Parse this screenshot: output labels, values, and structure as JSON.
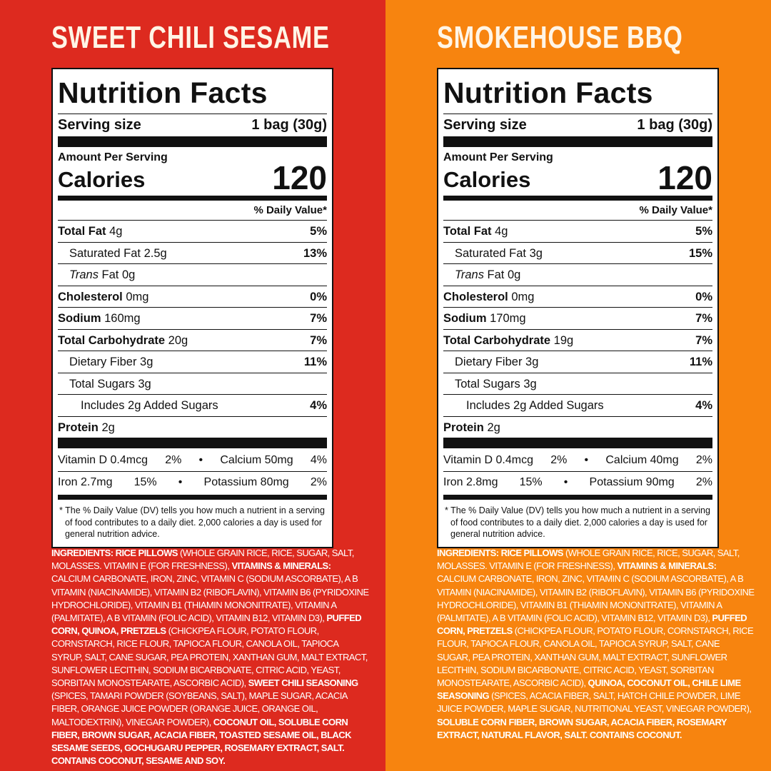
{
  "panels": [
    {
      "title": "SWEET CHILI SESAME",
      "heading": "Nutrition Facts",
      "serving_label": "Serving size",
      "serving_value": "1 bag (30g)",
      "amount_label": "Amount Per Serving",
      "calories_label": "Calories",
      "calories": 120,
      "dv_header": "% Daily Value*",
      "nutrients": [
        {
          "name": "Total Fat",
          "amount": "4g",
          "dv": "5%",
          "bold": true,
          "indent": 0
        },
        {
          "name": "Saturated Fat",
          "amount": "2.5g",
          "dv": "13%",
          "bold": false,
          "indent": 1
        },
        {
          "name_italic": "Trans",
          "name": "Fat",
          "amount": "0g",
          "bold": false,
          "indent": 1
        },
        {
          "name": "Cholesterol",
          "amount": "0mg",
          "dv": "0%",
          "bold": true,
          "indent": 0
        },
        {
          "name": "Sodium",
          "amount": "160mg",
          "dv": "7%",
          "bold": true,
          "indent": 0
        },
        {
          "name": "Total Carbohydrate",
          "amount": "20g",
          "dv": "7%",
          "bold": true,
          "indent": 0
        },
        {
          "name": "Dietary Fiber",
          "amount": "3g",
          "dv": "11%",
          "bold": false,
          "indent": 1
        },
        {
          "name": "Total Sugars",
          "amount": "3g",
          "bold": false,
          "indent": 1
        },
        {
          "name": "Includes 2g Added Sugars",
          "dv": "4%",
          "bold": false,
          "indent": 2
        }
      ],
      "protein": {
        "name": "Protein",
        "amount": "2g"
      },
      "vitamins": [
        [
          {
            "name": "Vitamin D",
            "amount": "0.4mcg",
            "dv": "2%"
          },
          {
            "name": "Calcium",
            "amount": "50mg",
            "dv": "4%"
          }
        ],
        [
          {
            "name": "Iron",
            "amount": "2.7mg",
            "dv": "15%"
          },
          {
            "name": "Potassium",
            "amount": "80mg",
            "dv": "2%"
          }
        ]
      ],
      "separator": "•",
      "footnote": "* The % Daily Value (DV) tells you how much a nutrient in a serving of food contributes to a daily diet. 2,000 calories a day is used for general nutrition advice.",
      "ingredients": [
        {
          "text": "INGREDIENTS: RICE PILLOWS",
          "bold": true
        },
        {
          "text": " (WHOLE GRAIN RICE, RICE, SUGAR, SALT, MOLASSES. VITAMIN E (FOR FRESHNESS), ",
          "bold": false
        },
        {
          "text": "VITAMINS & MINERALS:",
          "bold": true
        },
        {
          "text": " CALCIUM CARBONATE, IRON, ZINC, VITAMIN C (SODIUM ASCORBATE), A B VITAMIN (NIACINAMIDE), VITAMIN B2 (RIBOFLAVIN), VITAMIN B6 (PYRIDOXINE HYDROCHLORIDE), VITAMIN B1 (THIAMIN MONONITRATE), VITAMIN A (PALMITATE), A B VITAMIN (FOLIC ACID), VITAMIN B12, VITAMIN D3), ",
          "bold": false
        },
        {
          "text": "PUFFED CORN, QUINOA, PRETZELS",
          "bold": true
        },
        {
          "text": " (CHICKPEA FLOUR, POTATO FLOUR, CORNSTARCH, RICE FLOUR, TAPIOCA FLOUR, CANOLA OIL, TAPIOCA SYRUP, SALT, CANE SUGAR, PEA PROTEIN, XANTHAN GUM, MALT EXTRACT, SUNFLOWER LECITHIN, SODIUM BICARBONATE, CITRIC ACID, YEAST, SORBITAN MONOSTEARATE, ASCORBIC ACID), ",
          "bold": false
        },
        {
          "text": "SWEET CHILI SEASONING",
          "bold": true
        },
        {
          "text": " (SPICES, TAMARI POWDER (SOYBEANS, SALT), MAPLE SUGAR, ACACIA FIBER, ORANGE JUICE POWDER (ORANGE JUICE, ORANGE OIL, MALTODEXTRIN), VINEGAR POWDER), ",
          "bold": false
        },
        {
          "text": "COCONUT OIL, SOLUBLE CORN FIBER, BROWN SUGAR, ACACIA FIBER, TOASTED SESAME OIL, BLACK SESAME SEEDS, GOCHUGARU PEPPER, ROSEMARY EXTRACT, SALT. CONTAINS COCONUT, SESAME AND SOY.",
          "bold": true
        }
      ],
      "background": "#dd2a1f"
    },
    {
      "title": "SMOKEHOUSE BBQ",
      "heading": "Nutrition Facts",
      "serving_label": "Serving size",
      "serving_value": "1 bag (30g)",
      "amount_label": "Amount Per Serving",
      "calories_label": "Calories",
      "calories": 120,
      "dv_header": "% Daily Value*",
      "nutrients": [
        {
          "name": "Total Fat",
          "amount": "4g",
          "dv": "5%",
          "bold": true,
          "indent": 0
        },
        {
          "name": "Saturated Fat",
          "amount": "3g",
          "dv": "15%",
          "bold": false,
          "indent": 1
        },
        {
          "name_italic": "Trans",
          "name": "Fat",
          "amount": "0g",
          "bold": false,
          "indent": 1
        },
        {
          "name": "Cholesterol",
          "amount": "0mg",
          "dv": "0%",
          "bold": true,
          "indent": 0
        },
        {
          "name": "Sodium",
          "amount": "170mg",
          "dv": "7%",
          "bold": true,
          "indent": 0
        },
        {
          "name": "Total Carbohydrate",
          "amount": "19g",
          "dv": "7%",
          "bold": true,
          "indent": 0
        },
        {
          "name": "Dietary Fiber",
          "amount": "3g",
          "dv": "11%",
          "bold": false,
          "indent": 1
        },
        {
          "name": "Total Sugars",
          "amount": "3g",
          "bold": false,
          "indent": 1
        },
        {
          "name": "Includes 2g Added Sugars",
          "dv": "4%",
          "bold": false,
          "indent": 2
        }
      ],
      "protein": {
        "name": "Protein",
        "amount": "2g"
      },
      "vitamins": [
        [
          {
            "name": "Vitamin D",
            "amount": "0.4mcg",
            "dv": "2%"
          },
          {
            "name": "Calcium",
            "amount": "40mg",
            "dv": "2%"
          }
        ],
        [
          {
            "name": "Iron",
            "amount": "2.8mg",
            "dv": "15%"
          },
          {
            "name": "Potassium",
            "amount": "90mg",
            "dv": "2%"
          }
        ]
      ],
      "separator": "•",
      "footnote": "* The % Daily Value (DV) tells you how much a nutrient in a serving of food contributes to a daily diet. 2,000 calories a day is used for general nutrition advice.",
      "ingredients": [
        {
          "text": "INGREDIENTS: RICE PILLOWS",
          "bold": true
        },
        {
          "text": " (WHOLE GRAIN RICE, RICE, SUGAR, SALT, MOLASSES. VITAMIN E (FOR FRESHNESS), ",
          "bold": false
        },
        {
          "text": "VITAMINS & MINERALS:",
          "bold": true
        },
        {
          "text": " CALCIUM CARBONATE, IRON, ZINC, VITAMIN C (SODIUM ASCORBATE), A B VITAMIN (NIACINAMIDE), VITAMIN B2 (RIBOFLAVIN), VITAMIN B6 (PYRIDOXINE HYDROCHLORIDE), VITAMIN B1 (THIAMIN MONONITRATE), VITAMIN A (PALMITATE), A B VITAMIN (FOLIC ACID), VITAMIN B12, VITAMIN D3), ",
          "bold": false
        },
        {
          "text": "PUFFED CORN, PRETZELS",
          "bold": true
        },
        {
          "text": " (CHICKPEA FLOUR, POTATO FLOUR, CORNSTARCH, RICE FLOUR, TAPIOCA FLOUR, CANOLA OIL, TAPIOCA SYRUP, SALT, CANE SUGAR, PEA PROTEIN, XANTHAN GUM, MALT EXTRACT, SUNFLOWER LECITHIN, SODIUM BICARBONATE, CITRIC ACID, YEAST, SORBITAN MONOSTEARATE, ASCORBIC ACID), ",
          "bold": false
        },
        {
          "text": "QUINOA, COCONUT OIL, CHILE LIME SEASONING",
          "bold": true
        },
        {
          "text": " (SPICES, ACACIA FIBER, SALT, HATCH CHILE POWDER, LIME JUICE POWDER, MAPLE SUGAR, NUTRITIONAL YEAST, VINEGAR POWDER), ",
          "bold": false
        },
        {
          "text": "SOLUBLE CORN FIBER, BROWN SUGAR, ACACIA FIBER, ROSEMARY EXTRACT, NATURAL FLAVOR, SALT. CONTAINS COCONUT.",
          "bold": true
        }
      ],
      "background": "#f7840f"
    }
  ]
}
